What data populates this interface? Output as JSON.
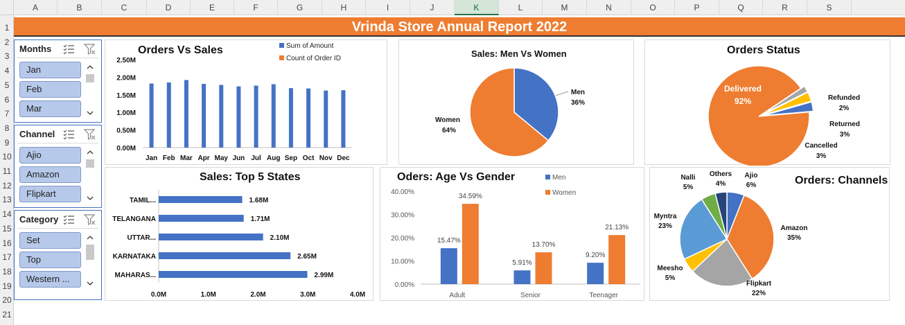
{
  "banner": {
    "title": "Vrinda Store Annual Report 2022"
  },
  "sheet": {
    "columns": [
      {
        "label": "A",
        "w": 63
      },
      {
        "label": "B",
        "w": 64
      },
      {
        "label": "C",
        "w": 65
      },
      {
        "label": "D",
        "w": 63
      },
      {
        "label": "E",
        "w": 63
      },
      {
        "label": "F",
        "w": 63
      },
      {
        "label": "G",
        "w": 64
      },
      {
        "label": "H",
        "w": 63
      },
      {
        "label": "I",
        "w": 64
      },
      {
        "label": "J",
        "w": 64
      },
      {
        "label": "K",
        "w": 64
      },
      {
        "label": "L",
        "w": 63
      },
      {
        "label": "M",
        "w": 64
      },
      {
        "label": "N",
        "w": 64
      },
      {
        "label": "O",
        "w": 63
      },
      {
        "label": "P",
        "w": 64
      },
      {
        "label": "Q",
        "w": 63
      },
      {
        "label": "R",
        "w": 64
      },
      {
        "label": "S",
        "w": 64
      }
    ],
    "selected_column": "K",
    "rows": [
      "1",
      "2",
      "3",
      "4",
      "5",
      "6",
      "7",
      "8",
      "9",
      "10",
      "11",
      "12",
      "13",
      "14",
      "15",
      "16",
      "17",
      "18",
      "19",
      "20",
      "21"
    ]
  },
  "slicers": [
    {
      "title": "Months",
      "items": [
        "Jan",
        "Feb",
        "Mar"
      ]
    },
    {
      "title": "Channel",
      "items": [
        "Ajio",
        "Amazon",
        "Flipkart"
      ]
    },
    {
      "title": "Category",
      "items": [
        "Set",
        "Top",
        "Western ..."
      ]
    }
  ],
  "colors": {
    "blue": "#4472c4",
    "orange": "#ee7d31",
    "gray": "#a5a5a5",
    "yellow": "#ffc000",
    "lightblue": "#5b9bd5",
    "green": "#70ad47",
    "navy": "#264478"
  },
  "chart_data": [
    {
      "id": "orders_vs_sales",
      "type": "bar",
      "title": "Orders Vs Sales",
      "categories": [
        "Jan",
        "Feb",
        "Mar",
        "Apr",
        "May",
        "Jun",
        "Jul",
        "Aug",
        "Sep",
        "Oct",
        "Nov",
        "Dec"
      ],
      "series": [
        {
          "name": "Sum of Amount",
          "values": [
            1.82,
            1.85,
            1.92,
            1.81,
            1.78,
            1.74,
            1.76,
            1.8,
            1.69,
            1.68,
            1.62,
            1.63
          ]
        },
        {
          "name": "Count of Order ID",
          "values": [
            0.003,
            0.003,
            0.003,
            0.003,
            0.003,
            0.003,
            0.003,
            0.003,
            0.003,
            0.003,
            0.003,
            0.003
          ]
        }
      ],
      "yticks": [
        "0.00M",
        "0.50M",
        "1.00M",
        "1.50M",
        "2.00M",
        "2.50M"
      ],
      "ylim": [
        0,
        2.5
      ],
      "legend": "top"
    },
    {
      "id": "sales_men_women",
      "type": "pie",
      "title": "Sales: Men Vs Women",
      "slices": [
        {
          "label": "Men",
          "value": 36,
          "pct": "36%"
        },
        {
          "label": "Women",
          "value": 64,
          "pct": "64%"
        }
      ]
    },
    {
      "id": "orders_status",
      "type": "pie",
      "title": "Orders Status",
      "slices": [
        {
          "label": "Delivered",
          "value": 92,
          "pct": "92%"
        },
        {
          "label": "Refunded",
          "value": 2,
          "pct": "2%"
        },
        {
          "label": "Returned",
          "value": 3,
          "pct": "3%"
        },
        {
          "label": "Cancelled",
          "value": 3,
          "pct": "3%"
        }
      ]
    },
    {
      "id": "top5_states",
      "type": "bar",
      "orientation": "horizontal",
      "title": "Sales: Top 5 States",
      "categories": [
        "TAMIL...",
        "TELANGANA",
        "UTTAR...",
        "KARNATAKA",
        "MAHARAS..."
      ],
      "values": [
        1.68,
        1.71,
        2.1,
        2.65,
        2.99
      ],
      "labels": [
        "1.68M",
        "1.71M",
        "2.10M",
        "2.65M",
        "2.99M"
      ],
      "xticks": [
        "0.0M",
        "1.0M",
        "2.0M",
        "3.0M",
        "4.0M"
      ],
      "xlim": [
        0,
        4
      ]
    },
    {
      "id": "age_vs_gender",
      "type": "bar",
      "title": "Oders: Age Vs Gender",
      "categories": [
        "Adult",
        "Senior",
        "Teenager"
      ],
      "series": [
        {
          "name": "Men",
          "values": [
            15.47,
            5.91,
            9.2
          ],
          "labels": [
            "15.47%",
            "5.91%",
            "9.20%"
          ]
        },
        {
          "name": "Women",
          "values": [
            34.59,
            13.7,
            21.13
          ],
          "labels": [
            "34.59%",
            "13.70%",
            "21.13%"
          ]
        }
      ],
      "yticks": [
        "0.00%",
        "10.00%",
        "20.00%",
        "30.00%",
        "40.00%"
      ],
      "ylim": [
        0,
        40
      ],
      "legend": "top-right"
    },
    {
      "id": "orders_channels",
      "type": "pie",
      "title": "Orders: Channels",
      "slices": [
        {
          "label": "Ajio",
          "value": 6,
          "pct": "6%"
        },
        {
          "label": "Amazon",
          "value": 35,
          "pct": "35%"
        },
        {
          "label": "Flipkart",
          "value": 22,
          "pct": "22%"
        },
        {
          "label": "Meesho",
          "value": 5,
          "pct": "5%"
        },
        {
          "label": "Myntra",
          "value": 23,
          "pct": "23%"
        },
        {
          "label": "Nalli",
          "value": 5,
          "pct": "5%"
        },
        {
          "label": "Others",
          "value": 4,
          "pct": "4%"
        }
      ]
    }
  ]
}
